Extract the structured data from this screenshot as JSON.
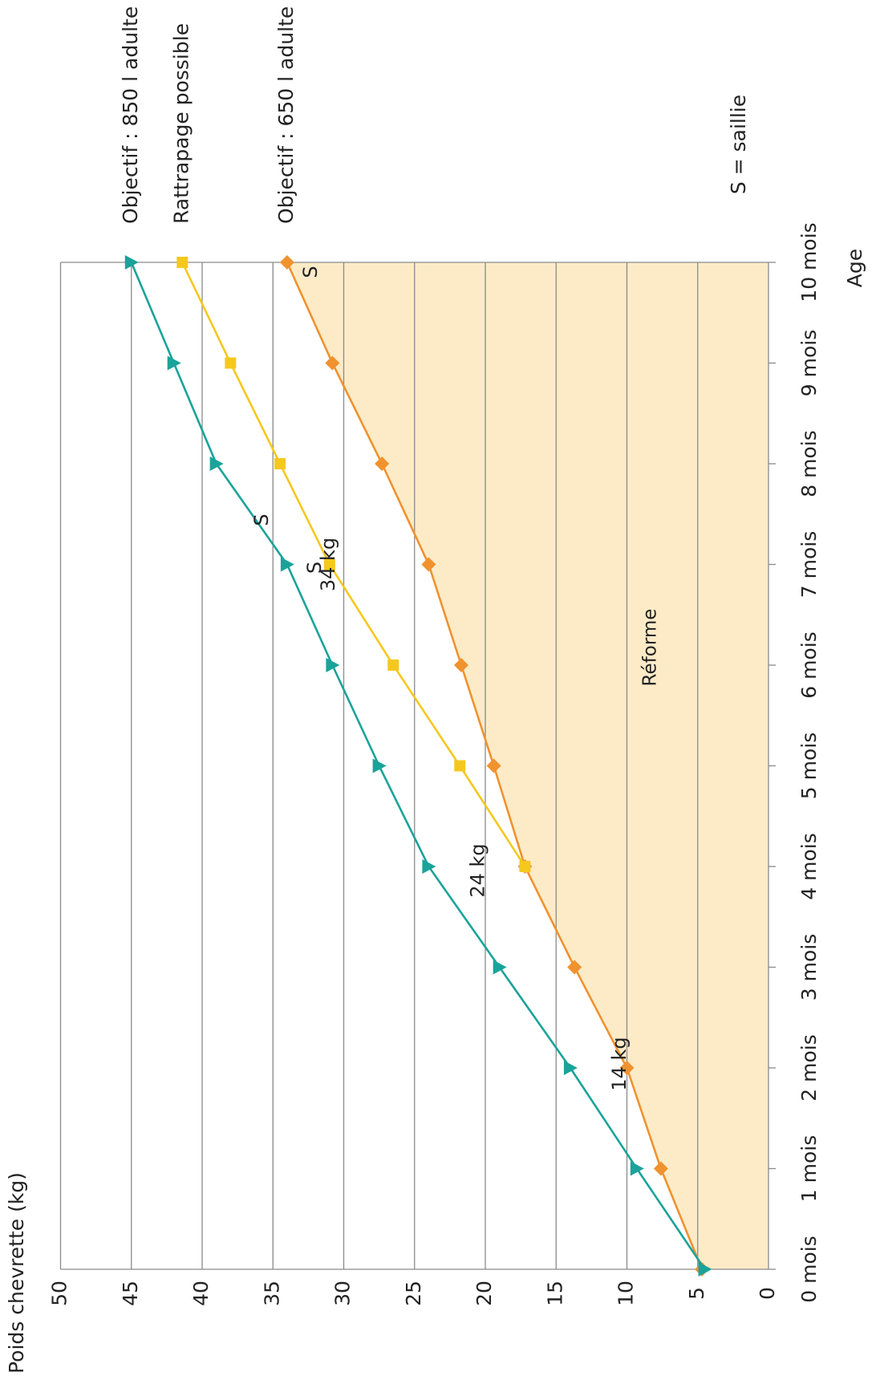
{
  "chart_data": {
    "type": "line",
    "orientation": "rotated-90-clockwise",
    "xlabel": "Age",
    "ylabel": "Poids chevrette (kg)",
    "categories": [
      "0 mois",
      "1 mois",
      "2 mois",
      "3 mois",
      "4 mois",
      "5 mois",
      "6 mois",
      "7 mois",
      "8 mois",
      "9 mois",
      "10 mois"
    ],
    "y_ticks": [
      "0",
      "5",
      "10",
      "15",
      "20",
      "25",
      "30",
      "35",
      "40",
      "45",
      "50"
    ],
    "ylim": [
      0,
      50
    ],
    "grid": true,
    "region": {
      "label": "Réforme",
      "fill": "#fdebc8",
      "boundary_series": "Objectif : 650 l adulte"
    },
    "series": [
      {
        "name": "Objectif : 850 l adulte",
        "color": "#1aa39a",
        "marker": "triangle",
        "x": [
          0,
          1,
          2,
          3,
          4,
          5,
          6,
          7,
          8,
          9,
          10
        ],
        "values": [
          4.5,
          9.3,
          14,
          19,
          24,
          27.5,
          30.8,
          34,
          39,
          42,
          45
        ]
      },
      {
        "name": "Rattrapage possible",
        "color": "#f5c81e",
        "marker": "square",
        "x": [
          4,
          5,
          6,
          7,
          8,
          9,
          10
        ],
        "values": [
          17.2,
          21.8,
          26.5,
          31,
          34.5,
          38,
          41.4
        ]
      },
      {
        "name": "Objectif : 650 l adulte",
        "color": "#f0922e",
        "marker": "diamond",
        "x": [
          0,
          1,
          2,
          3,
          4,
          5,
          6,
          7,
          8,
          9,
          10
        ],
        "values": [
          4.7,
          7.6,
          10,
          13.7,
          17.2,
          19.4,
          21.7,
          24,
          27.3,
          30.8,
          34
        ]
      }
    ],
    "annotations": [
      {
        "text": "14 kg",
        "x": 2,
        "y": 14
      },
      {
        "text": "24 kg",
        "x": 4,
        "y": 24
      },
      {
        "text": "34 kg",
        "x": 7,
        "y": 34
      },
      {
        "text": "S",
        "x": 7,
        "y": 34
      },
      {
        "text": "S",
        "x": 8,
        "y": 34.5
      },
      {
        "text": "S",
        "x": 10,
        "y": 34
      }
    ],
    "note": "S = saillie"
  }
}
